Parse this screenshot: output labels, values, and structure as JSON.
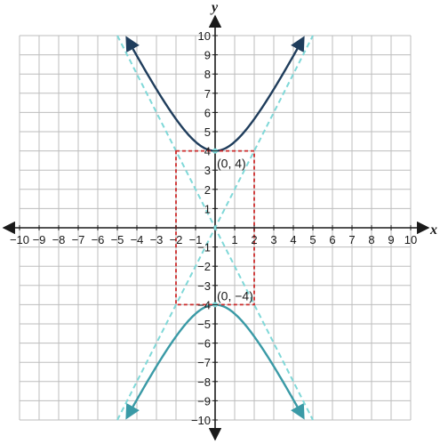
{
  "chart_data": {
    "type": "line",
    "xlabel": "x",
    "ylabel": "y",
    "xlim": [
      -10,
      10
    ],
    "ylim": [
      -10,
      10
    ],
    "grid": true,
    "x_ticks": [
      -10,
      -9,
      -8,
      -7,
      -6,
      -5,
      -4,
      -3,
      -2,
      -1,
      1,
      2,
      3,
      4,
      5,
      6,
      7,
      8,
      9,
      10
    ],
    "y_ticks": [
      -10,
      -9,
      -8,
      -7,
      -6,
      -5,
      -4,
      -3,
      -2,
      -1,
      1,
      2,
      3,
      4,
      5,
      6,
      7,
      8,
      9,
      10
    ],
    "x_tick_labels": [
      "−10",
      "−9",
      "−8",
      "−7",
      "−6",
      "−5",
      "−4",
      "−3",
      "−2",
      "−1",
      "1",
      "2",
      "3",
      "4",
      "5",
      "6",
      "7",
      "8",
      "9",
      "10"
    ],
    "y_tick_labels": [
      "−10",
      "−9",
      "−8",
      "−7",
      "−6",
      "−5",
      "−4",
      "−3",
      "−2",
      "−1",
      "1",
      "2",
      "3",
      "4",
      "5",
      "6",
      "7",
      "8",
      "9",
      "10"
    ],
    "series": [
      {
        "kind": "hyperbola-upper",
        "color": "#1f3d5c",
        "equation": {
          "a": 4,
          "b": 2
        },
        "x_range": [
          -4.5,
          4.5
        ],
        "arrows": true
      },
      {
        "kind": "hyperbola-lower",
        "color": "#3a9aa6",
        "equation": {
          "a": 4,
          "b": 2
        },
        "x_range": [
          -4.5,
          4.5
        ],
        "arrows": true
      },
      {
        "kind": "asymptote",
        "color": "#7fd8d8",
        "dashed": true,
        "points": [
          [
            -5,
            10
          ],
          [
            5,
            -10
          ]
        ]
      },
      {
        "kind": "asymptote",
        "color": "#7fd8d8",
        "dashed": true,
        "points": [
          [
            -5,
            -10
          ],
          [
            5,
            10
          ]
        ]
      },
      {
        "kind": "rectangle",
        "color": "#cc2a2a",
        "dashed": true,
        "points": [
          [
            -2,
            4
          ],
          [
            2,
            4
          ],
          [
            2,
            -4
          ],
          [
            -2,
            -4
          ]
        ]
      }
    ],
    "points": [
      {
        "x": 0,
        "y": 4,
        "label": "(0, 4)",
        "color": "#7fd8d8"
      },
      {
        "x": 0,
        "y": -4,
        "label": "(0, −4)",
        "color": "#7fd8d8"
      }
    ]
  }
}
